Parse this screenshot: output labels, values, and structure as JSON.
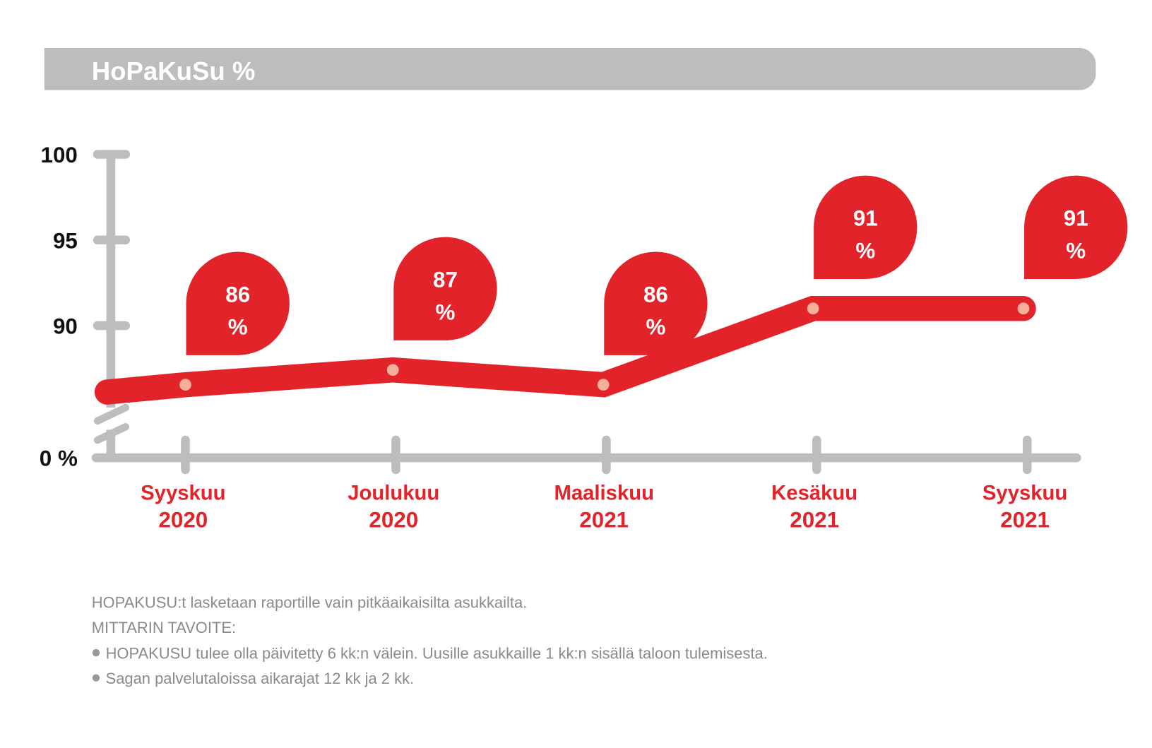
{
  "title": "HoPaKuSu %",
  "chart_data": {
    "type": "line",
    "title": "HoPaKuSu %",
    "categories": [
      [
        "Syyskuu",
        "2020"
      ],
      [
        "Joulukuu",
        "2020"
      ],
      [
        "Maaliskuu",
        "2021"
      ],
      [
        "Kesäkuu",
        "2021"
      ],
      [
        "Syyskuu",
        "2021"
      ]
    ],
    "values": [
      86,
      87,
      86,
      91,
      91
    ],
    "value_labels": [
      "86",
      "87",
      "86",
      "91",
      "91"
    ],
    "unit_label": "%",
    "y_ticks": [
      "100",
      "95",
      "90"
    ],
    "y_tick_values": [
      100,
      95,
      90
    ],
    "y_zero_label": "0 %",
    "ylim": [
      0,
      100
    ],
    "axis_break": true,
    "colors": {
      "line": "#e3232a",
      "axis": "#bdbdbd",
      "point": "#f4b09a",
      "label": "#e3232a"
    }
  },
  "notes": {
    "line1": "HOPAKUSU:t lasketaan raportille vain pitkäaikaisilta asukkailta.",
    "line2": "MITTARIN TAVOITE:",
    "bullets": [
      "HOPAKUSU tulee olla päivitetty 6 kk:n välein. Uusille asukkaille 1 kk:n sisällä taloon tulemisesta.",
      "Sagan palvelutaloissa aikarajat 12 kk ja 2 kk."
    ]
  }
}
